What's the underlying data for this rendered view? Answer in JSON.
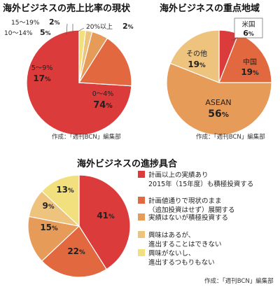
{
  "colors": {
    "red": "#dc3b3b",
    "orange": "#e2683f",
    "tan": "#e69b59",
    "sand": "#eec37e",
    "yellow": "#f2e07f",
    "slice_stroke": "#ffffff"
  },
  "chart_data": [
    {
      "type": "pie",
      "title": "海外ビジネスの売上比率の現状",
      "credit": "作成：「週刊BCN」編集部",
      "slices": [
        {
          "label": "0〜4%",
          "value": 74,
          "display": "74%"
        },
        {
          "label": "5〜9%",
          "value": 17,
          "display": "17%"
        },
        {
          "label": "10〜14%",
          "value": 5,
          "display": "5%"
        },
        {
          "label": "15〜19%",
          "value": 2,
          "display": "2%"
        },
        {
          "label": "20%以上",
          "value": 2,
          "display": "2%"
        }
      ]
    },
    {
      "type": "pie",
      "title": "海外ビジネスの重点地域",
      "credit": "作成：「週刊BCN」編集部",
      "slices": [
        {
          "label": "米国",
          "value": 6,
          "display": "6%"
        },
        {
          "label": "中国",
          "value": 19,
          "display": "19%"
        },
        {
          "label": "ASEAN",
          "value": 56,
          "display": "56%"
        },
        {
          "label": "その他",
          "value": 19,
          "display": "19%"
        }
      ]
    },
    {
      "type": "pie",
      "title": "海外ビジネスの進捗具合",
      "credit": "作成：「週刊BCN」編集部",
      "slices": [
        {
          "label": "計画以上の実績あり 2015年（15年度）も積極投資する",
          "value": 41,
          "display": "41%"
        },
        {
          "label": "計画値通りで現状のまま（追加投資はせず）展開する",
          "value": 22,
          "display": "22%"
        },
        {
          "label": "実績はないが積極投資する",
          "value": 15,
          "display": "15%"
        },
        {
          "label": "興味はあるが、進出することはできない",
          "value": 9,
          "display": "9%"
        },
        {
          "label": "興味がないし、進出するつもりもない",
          "value": 13,
          "display": "13%"
        }
      ],
      "legend": [
        [
          "計画以上の実績あり",
          "2015年（15年度）も積極投資する"
        ],
        [
          "計画値通りで現状のまま",
          "（追加投資はせず）展開する"
        ],
        [
          "実績はないが積極投資する"
        ],
        [
          "興味はあるが、",
          "進出することはできない"
        ],
        [
          "興味がないし、",
          "進出するつもりもない"
        ]
      ]
    }
  ]
}
